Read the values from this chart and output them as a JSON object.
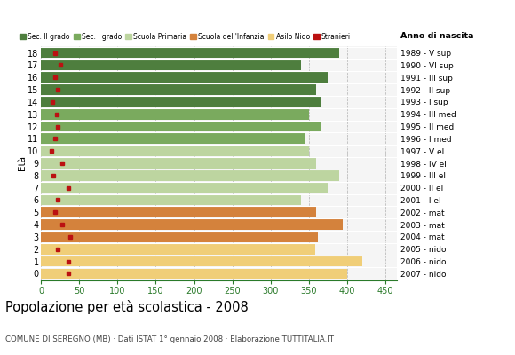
{
  "ages": [
    18,
    17,
    16,
    15,
    14,
    13,
    12,
    11,
    10,
    9,
    8,
    7,
    6,
    5,
    4,
    3,
    2,
    1,
    0
  ],
  "bar_values": [
    390,
    340,
    375,
    360,
    365,
    350,
    365,
    345,
    350,
    360,
    390,
    375,
    340,
    360,
    395,
    362,
    358,
    420,
    400
  ],
  "foreigners": [
    18,
    25,
    18,
    22,
    15,
    20,
    22,
    18,
    14,
    28,
    16,
    35,
    22,
    18,
    28,
    38,
    22,
    35,
    35
  ],
  "right_labels": [
    "1989 - V sup",
    "1990 - VI sup",
    "1991 - III sup",
    "1992 - II sup",
    "1993 - I sup",
    "1994 - III med",
    "1995 - II med",
    "1996 - I med",
    "1997 - V el",
    "1998 - IV el",
    "1999 - III el",
    "2000 - II el",
    "2001 - I el",
    "2002 - mat",
    "2003 - mat",
    "2004 - mat",
    "2005 - nido",
    "2006 - nido",
    "2007 - nido"
  ],
  "sec2_color": "#4e7e3e",
  "sec1_color": "#7aaa5e",
  "primaria_color": "#bdd5a0",
  "infanzia_color": "#d4823c",
  "nido_color": "#f0ce78",
  "stranieri_color": "#bb1111",
  "bg_color": "#f5f5f5",
  "legend_labels": [
    "Sec. II grado",
    "Sec. I grado",
    "Scuola Primaria",
    "Scuola dell'Infanzia",
    "Asilo Nido",
    "Stranieri"
  ],
  "title": "Popolazione per età scolastica - 2008",
  "subtitle": "COMUNE DI SEREGNO (MB) · Dati ISTAT 1° gennaio 2008 · Elaborazione TUTTITALIA.IT",
  "eta_label": "Età",
  "anno_label": "Anno di nascita",
  "xticks": [
    0,
    50,
    100,
    150,
    200,
    250,
    300,
    350,
    400,
    450
  ],
  "xlim": [
    0,
    465
  ],
  "ylim": [
    -0.55,
    18.55
  ],
  "bar_height": 0.85,
  "figsize": [
    5.8,
    4.0
  ],
  "dpi": 100
}
